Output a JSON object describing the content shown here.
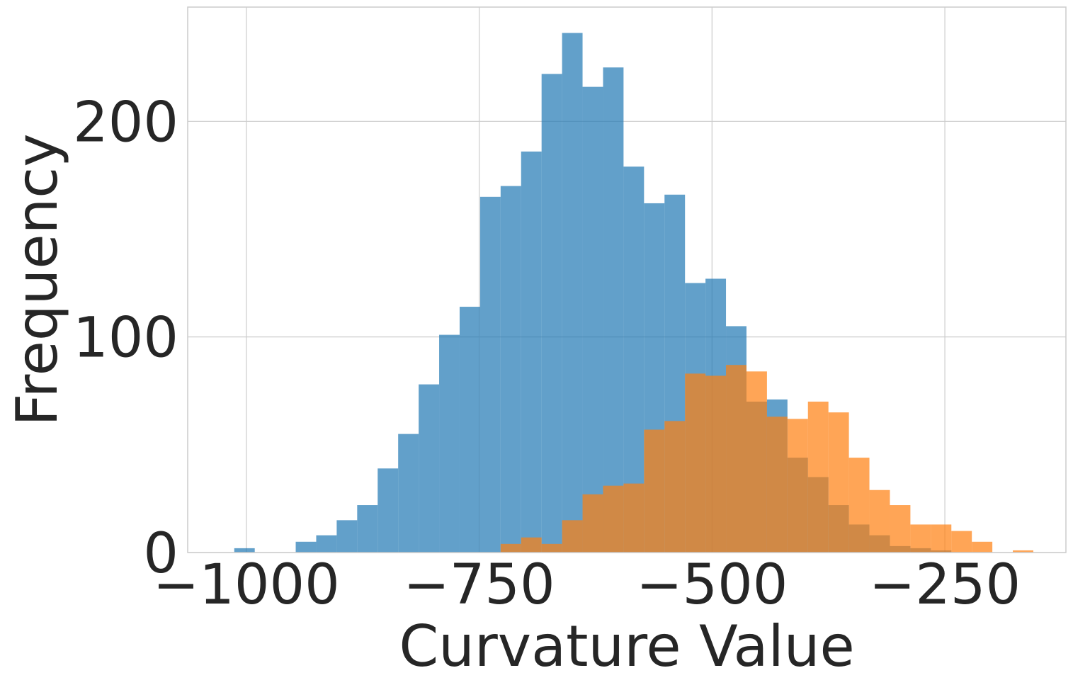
{
  "chart_data": {
    "type": "histogram",
    "xlabel": "Curvature Value",
    "ylabel": "Frequency",
    "xlim": [
      -1063,
      -120
    ],
    "ylim": [
      0,
      253
    ],
    "xticks": [
      -1000,
      -750,
      -500,
      -250
    ],
    "xtick_labels": [
      "−1000",
      "−750",
      "−500",
      "−250"
    ],
    "yticks": [
      0,
      100,
      200
    ],
    "ytick_labels": [
      "0",
      "100",
      "200"
    ],
    "grid": true,
    "legend": "none",
    "bin_edges": [
      -1013,
      -991,
      -969,
      -947,
      -925,
      -903,
      -881,
      -859,
      -837,
      -815,
      -793,
      -771,
      -749,
      -727,
      -705,
      -683,
      -661,
      -639,
      -617,
      -595,
      -573,
      -551,
      -529,
      -507,
      -485,
      -463,
      -441,
      -419,
      -397,
      -375,
      -353,
      -331,
      -309,
      -287,
      -265,
      -243,
      -221,
      -199,
      -177,
      -155
    ],
    "series": [
      {
        "color": "#1f77b4",
        "opacity": 0.7,
        "values": [
          2,
          0,
          0,
          5,
          8,
          15,
          22,
          39,
          55,
          78,
          101,
          114,
          165,
          170,
          186,
          222,
          241,
          216,
          225,
          179,
          162,
          166,
          125,
          127,
          105,
          70,
          71,
          44,
          35,
          22,
          13,
          8,
          3,
          2,
          1,
          0,
          0,
          0,
          0
        ]
      },
      {
        "color": "#ff7f0e",
        "opacity": 0.7,
        "values": [
          0,
          0,
          0,
          0,
          0,
          0,
          0,
          0,
          0,
          0,
          0,
          0,
          0,
          4,
          7,
          4,
          15,
          27,
          31,
          32,
          57,
          61,
          83,
          82,
          87,
          84,
          63,
          62,
          70,
          65,
          44,
          29,
          22,
          13,
          13,
          10,
          5,
          0,
          1
        ]
      }
    ]
  }
}
